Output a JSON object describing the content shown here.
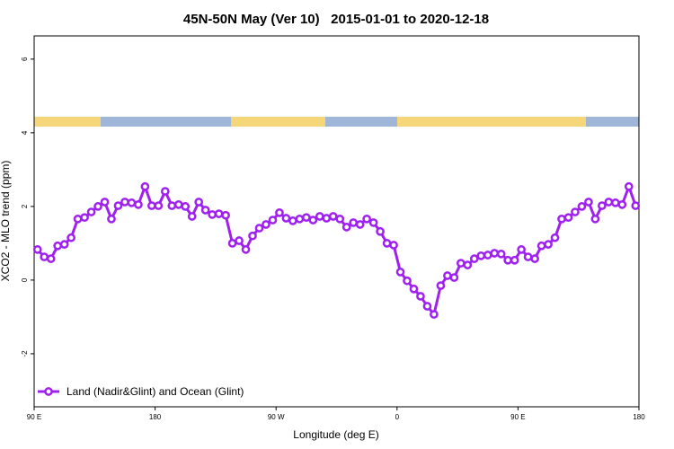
{
  "chart_data": {
    "type": "line",
    "title": "45N-50N May (Ver 10)   2015-01-01 to 2020-12-18",
    "x_label": "Longitude (deg E)",
    "y_label": "XCO2 - MLO trend (ppm)",
    "xlim": [
      90,
      540
    ],
    "ylim": [
      -3.44,
      6.63
    ],
    "xticks": [
      {
        "value": 90,
        "label": "90 E"
      },
      180,
      {
        "value": 270,
        "label": "90 W"
      },
      {
        "value": 360,
        "label": "0"
      },
      {
        "value": 450,
        "label": "90 E"
      },
      {
        "value": 540,
        "label": "180"
      }
    ],
    "yticks": [
      -2,
      0,
      2,
      4,
      6
    ],
    "legend": "bottom-left",
    "x": [
      92.5,
      97.5,
      102.5,
      107.5,
      112.5,
      117.5,
      122.5,
      127.5,
      132.5,
      137.5,
      142.5,
      147.5,
      152.5,
      157.5,
      162.5,
      167.5,
      172.5,
      177.5,
      182.5,
      187.5,
      192.5,
      197.5,
      202.5,
      207.5,
      212.5,
      217.5,
      222.5,
      227.5,
      232.5,
      237.5,
      242.5,
      247.5,
      252.5,
      257.5,
      262.5,
      267.5,
      272.5,
      277.5,
      282.5,
      287.5,
      292.5,
      297.5,
      302.5,
      307.5,
      312.5,
      317.5,
      322.5,
      327.5,
      332.5,
      337.5,
      342.5,
      347.5,
      352.5,
      357.5,
      362.5,
      367.5,
      372.5,
      377.5,
      382.5,
      387.5,
      392.5,
      397.5,
      402.5,
      407.5,
      412.5,
      417.5,
      422.5,
      427.5,
      432.5,
      437.5,
      442.5,
      447.5,
      452.5,
      457.5,
      462.5,
      467.5,
      472.5,
      477.5,
      482.5,
      487.5,
      492.5,
      497.5,
      502.5,
      507.5,
      512.5,
      517.5,
      522.5,
      527.5,
      532.5,
      537.5
    ],
    "series": [
      {
        "name": "Land (Nadir&Glint) and Ocean (Glint)",
        "color": "#a020f0",
        "values": [
          0.83,
          0.63,
          0.58,
          0.93,
          0.97,
          1.15,
          1.66,
          1.7,
          1.85,
          2.0,
          2.12,
          1.66,
          2.02,
          2.12,
          2.1,
          2.05,
          2.54,
          2.02,
          2.02,
          2.41,
          2.02,
          2.05,
          2.0,
          1.73,
          2.12,
          1.9,
          1.78,
          1.8,
          1.76,
          1.0,
          1.07,
          0.83,
          1.2,
          1.41,
          1.51,
          1.63,
          1.83,
          1.68,
          1.61,
          1.66,
          1.7,
          1.63,
          1.73,
          1.68,
          1.73,
          1.66,
          1.44,
          1.56,
          1.51,
          1.66,
          1.56,
          1.32,
          1.0,
          0.95,
          0.22,
          -0.02,
          -0.24,
          -0.44,
          -0.71,
          -0.93,
          -0.15,
          0.12,
          0.07,
          0.46,
          0.41,
          0.58,
          0.66,
          0.68,
          0.73,
          0.71,
          0.54,
          0.54,
          0.83,
          0.63,
          0.58,
          0.93,
          0.97,
          1.15,
          1.66,
          1.7,
          1.85,
          2.0,
          2.12,
          1.66,
          2.02,
          2.12,
          2.1,
          2.05,
          2.54,
          2.02
        ]
      }
    ]
  }
}
